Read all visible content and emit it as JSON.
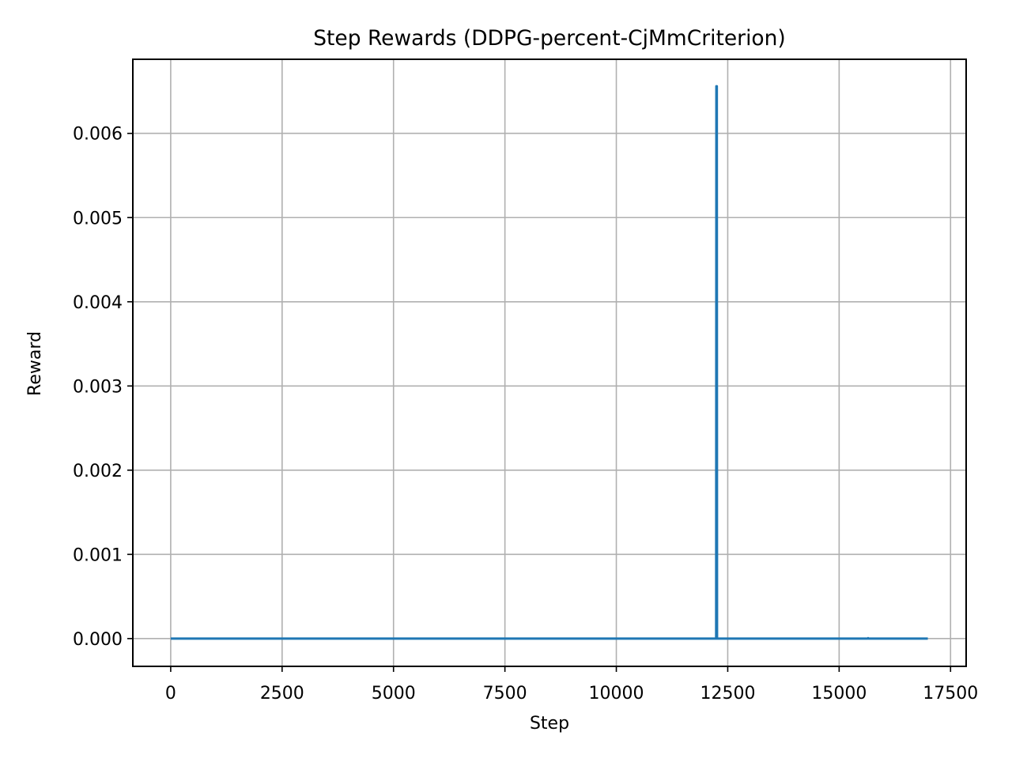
{
  "chart_data": {
    "type": "line",
    "title": "Step Rewards (DDPG-percent-CjMmCriterion)",
    "xlabel": "Step",
    "ylabel": "Reward",
    "xlim": [
      -850,
      17850
    ],
    "ylim": [
      -0.00033,
      0.00688
    ],
    "xticks": [
      0,
      2500,
      5000,
      7500,
      10000,
      12500,
      15000,
      17500
    ],
    "yticks": [
      0.0,
      0.001,
      0.002,
      0.003,
      0.004,
      0.005,
      0.006
    ],
    "xtick_labels": [
      "0",
      "2500",
      "5000",
      "7500",
      "10000",
      "12500",
      "15000",
      "17500"
    ],
    "ytick_labels": [
      "0.000",
      "0.001",
      "0.002",
      "0.003",
      "0.004",
      "0.005",
      "0.006"
    ],
    "grid": true,
    "color": "#1f77b4",
    "series": [
      {
        "x": [
          0,
          12240,
          12245,
          12255,
          12260,
          15640,
          15650,
          15660,
          16990
        ],
        "y": [
          0,
          0,
          0.00656,
          0.00656,
          0,
          0,
          5e-06,
          0,
          0
        ]
      }
    ]
  }
}
